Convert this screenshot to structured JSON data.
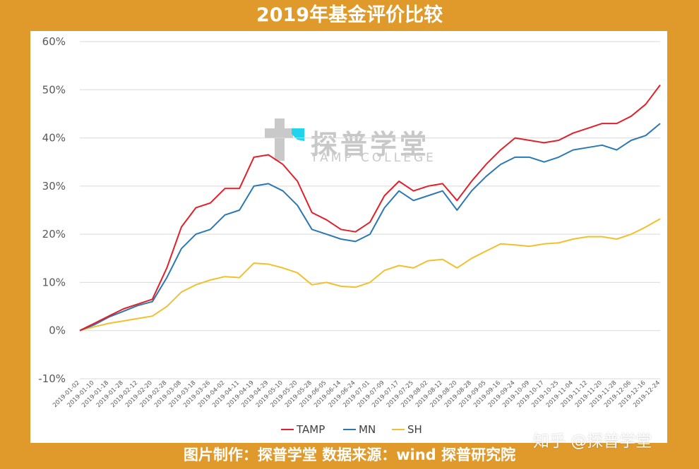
{
  "header": {
    "title": "2019年基金评价比较"
  },
  "footer": {
    "text": "图片制作：探普学堂  数据来源：wind 探普研究院"
  },
  "watermark": {
    "cn": "探普学堂",
    "en": "TAMP COLLEGE",
    "site": "知乎 @探普学堂"
  },
  "colors": {
    "background": "#e09a2c",
    "TAMP": "#e0202a",
    "MN": "#2a78b4",
    "SH": "#f2c02c",
    "grid": "#d9d9d9",
    "watermark_accent": "#22d3ee"
  },
  "chart_data": {
    "type": "line",
    "title": "2019年基金评价比较",
    "xlabel": "",
    "ylabel": "",
    "ylim": [
      -0.1,
      0.6
    ],
    "yticks": [
      "60%",
      "50%",
      "40%",
      "30%",
      "20%",
      "10%",
      "0%",
      "-10%"
    ],
    "ytick_values": [
      0.6,
      0.5,
      0.4,
      0.3,
      0.2,
      0.1,
      0.0,
      -0.1
    ],
    "grid": "horizontal",
    "legend": "bottom",
    "x_tick_labels": [
      "2019-01-02",
      "2019-01-10",
      "2019-01-18",
      "2019-01-28",
      "2019-02-12",
      "2019-02-20",
      "2019-02-28",
      "2019-03-08",
      "2019-03-18",
      "2019-03-26",
      "2019-04-02",
      "2019-04-11",
      "2019-04-19",
      "2019-04-29",
      "2019-05-10",
      "2019-05-20",
      "2019-05-28",
      "2019-06-05",
      "2019-06-14",
      "2019-06-24",
      "2019-07-01",
      "2019-07-09",
      "2019-07-17",
      "2019-07-25",
      "2019-08-02",
      "2019-08-12",
      "2019-08-20",
      "2019-08-28",
      "2019-09-05",
      "2019-09-16",
      "2019-09-24",
      "2019-10-09",
      "2019-10-17",
      "2019-10-25",
      "2019-11-04",
      "2019-11-12",
      "2019-11-20",
      "2019-11-28",
      "2019-12-06",
      "2019-12-16",
      "2019-12-24"
    ],
    "series": [
      {
        "name": "TAMP",
        "values": [
          0.0,
          0.015,
          0.03,
          0.045,
          0.055,
          0.065,
          0.13,
          0.215,
          0.255,
          0.265,
          0.295,
          0.295,
          0.36,
          0.365,
          0.345,
          0.31,
          0.245,
          0.23,
          0.21,
          0.205,
          0.225,
          0.28,
          0.31,
          0.29,
          0.3,
          0.305,
          0.27,
          0.31,
          0.345,
          0.375,
          0.4,
          0.395,
          0.39,
          0.395,
          0.41,
          0.42,
          0.43,
          0.43,
          0.445,
          0.47,
          0.51
        ]
      },
      {
        "name": "MN",
        "values": [
          0.0,
          0.012,
          0.028,
          0.04,
          0.052,
          0.06,
          0.11,
          0.17,
          0.2,
          0.21,
          0.24,
          0.25,
          0.3,
          0.305,
          0.29,
          0.26,
          0.21,
          0.2,
          0.19,
          0.185,
          0.2,
          0.255,
          0.29,
          0.27,
          0.28,
          0.29,
          0.25,
          0.29,
          0.32,
          0.345,
          0.36,
          0.36,
          0.35,
          0.36,
          0.375,
          0.38,
          0.385,
          0.375,
          0.395,
          0.405,
          0.43
        ]
      },
      {
        "name": "SH",
        "values": [
          0.0,
          0.008,
          0.015,
          0.02,
          0.025,
          0.03,
          0.05,
          0.08,
          0.095,
          0.105,
          0.112,
          0.11,
          0.14,
          0.138,
          0.13,
          0.12,
          0.095,
          0.1,
          0.092,
          0.09,
          0.1,
          0.125,
          0.135,
          0.13,
          0.145,
          0.148,
          0.13,
          0.15,
          0.165,
          0.18,
          0.178,
          0.175,
          0.18,
          0.182,
          0.19,
          0.195,
          0.195,
          0.19,
          0.2,
          0.215,
          0.232
        ]
      }
    ]
  }
}
